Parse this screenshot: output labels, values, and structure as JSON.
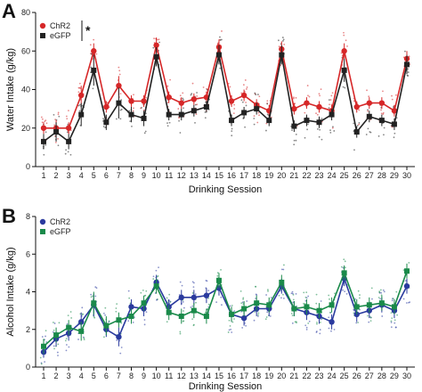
{
  "chart_data": [
    {
      "panel": "A",
      "type": "line",
      "xlabel": "Drinking Session",
      "ylabel": "Water Intake (g/kg)",
      "xlim": [
        1,
        30
      ],
      "ylim": [
        0,
        80
      ],
      "yticks": [
        0,
        20,
        40,
        60,
        80
      ],
      "x": [
        1,
        2,
        3,
        4,
        5,
        6,
        7,
        8,
        9,
        10,
        11,
        12,
        13,
        14,
        15,
        16,
        17,
        18,
        19,
        20,
        21,
        22,
        23,
        24,
        25,
        26,
        27,
        28,
        29,
        30
      ],
      "grid": false,
      "legend": "top-left",
      "significance": "*",
      "series": [
        {
          "name": "ChR2",
          "color": "#d62728",
          "marker": "circle",
          "values": [
            20,
            20,
            20,
            37,
            60,
            31,
            42,
            34,
            34,
            63,
            36,
            33,
            35,
            36,
            62,
            34,
            37,
            32,
            29,
            61,
            30,
            33,
            31,
            29,
            60,
            31,
            33,
            33,
            29,
            56
          ],
          "errors": [
            3,
            4,
            3,
            5,
            4,
            3,
            5,
            3,
            3,
            4,
            3,
            3,
            3,
            3,
            4,
            3,
            3,
            3,
            3,
            4,
            3,
            3,
            3,
            3,
            4,
            3,
            3,
            3,
            3,
            4
          ]
        },
        {
          "name": "eGFP",
          "color": "#222222",
          "marker": "square",
          "values": [
            13,
            18,
            13,
            27,
            50,
            23,
            33,
            27,
            25,
            57,
            27,
            27,
            29,
            31,
            58,
            24,
            28,
            30,
            24,
            58,
            21,
            24,
            23,
            27,
            50,
            18,
            26,
            24,
            22,
            53
          ],
          "errors": [
            4,
            5,
            4,
            6,
            8,
            4,
            8,
            4,
            4,
            5,
            3,
            3,
            3,
            3,
            5,
            3,
            3,
            3,
            3,
            5,
            3,
            3,
            3,
            3,
            6,
            3,
            3,
            3,
            3,
            5
          ]
        }
      ]
    },
    {
      "panel": "B",
      "type": "line",
      "xlabel": "Drinking Session",
      "ylabel": "Alcohol Intake (g/kg)",
      "xlim": [
        1,
        30
      ],
      "ylim": [
        0,
        8
      ],
      "yticks": [
        0,
        2,
        4,
        6,
        8
      ],
      "x": [
        1,
        2,
        3,
        4,
        5,
        6,
        7,
        8,
        9,
        10,
        11,
        12,
        13,
        14,
        15,
        16,
        17,
        18,
        19,
        20,
        21,
        22,
        23,
        24,
        25,
        26,
        27,
        28,
        29,
        30
      ],
      "grid": false,
      "legend": "top-left",
      "series": [
        {
          "name": "ChR2",
          "color": "#2a3a9e",
          "marker": "circle",
          "values": [
            0.8,
            1.5,
            1.8,
            2.4,
            3.3,
            2.0,
            1.6,
            3.2,
            3.1,
            4.5,
            3.2,
            3.7,
            3.7,
            3.8,
            4.2,
            2.8,
            2.6,
            3.1,
            3.1,
            4.3,
            3.1,
            2.9,
            2.7,
            2.4,
            4.7,
            2.8,
            3.0,
            3.3,
            3.0,
            4.3
          ],
          "errors": [
            0.3,
            0.4,
            0.4,
            0.5,
            0.6,
            0.4,
            0.5,
            0.4,
            0.4,
            0.4,
            0.4,
            0.4,
            0.4,
            0.4,
            0.4,
            0.4,
            0.4,
            0.4,
            0.4,
            0.4,
            0.4,
            0.4,
            0.4,
            0.4,
            0.4,
            0.4,
            0.4,
            0.4,
            0.4,
            0.4
          ]
        },
        {
          "name": "eGFP",
          "color": "#1a8a4a",
          "marker": "square",
          "values": [
            1.1,
            1.7,
            2.1,
            1.9,
            3.4,
            2.2,
            2.5,
            2.7,
            3.4,
            4.3,
            2.9,
            2.7,
            3.0,
            2.7,
            4.6,
            2.8,
            3.1,
            3.4,
            3.3,
            4.5,
            3.1,
            3.2,
            3.0,
            3.3,
            5.0,
            3.2,
            3.3,
            3.4,
            3.2,
            5.1
          ],
          "errors": [
            0.4,
            0.4,
            0.4,
            0.5,
            0.6,
            0.5,
            0.4,
            0.4,
            0.4,
            0.4,
            0.4,
            0.4,
            0.4,
            0.4,
            0.4,
            0.4,
            0.4,
            0.4,
            0.4,
            0.4,
            0.4,
            0.4,
            0.4,
            0.4,
            0.4,
            0.4,
            0.4,
            0.4,
            0.4,
            0.4
          ]
        }
      ]
    }
  ]
}
